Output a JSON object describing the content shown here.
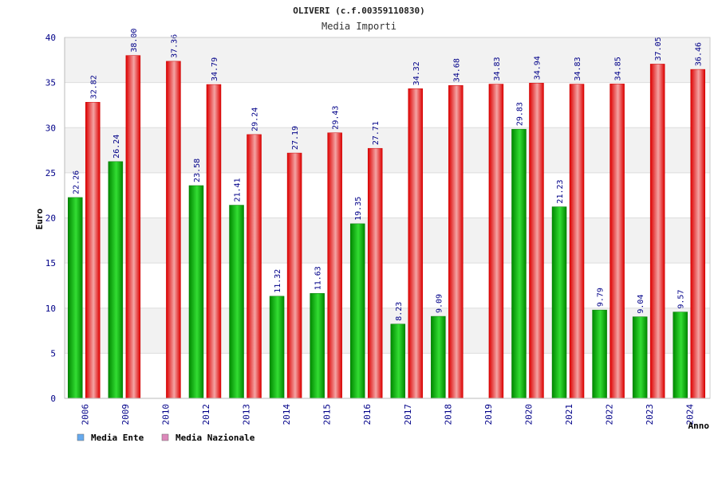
{
  "chart_data": {
    "type": "bar",
    "title": "OLIVERI (c.f.00359110830)",
    "subtitle": "Media Importi",
    "xlabel": "Anno",
    "ylabel": "Euro",
    "ylim": [
      0,
      40
    ],
    "yticks": [
      0,
      5,
      10,
      15,
      20,
      25,
      30,
      35,
      40
    ],
    "grid": true,
    "legend_position": "bottom-left",
    "categories": [
      "2006",
      "2009",
      "2010",
      "2012",
      "2013",
      "2014",
      "2015",
      "2016",
      "2017",
      "2018",
      "2019",
      "2020",
      "2021",
      "2022",
      "2023",
      "2024"
    ],
    "series": [
      {
        "name": "Media Ente",
        "color": "#00b400",
        "legend_color": "#66aaee",
        "values": [
          22.26,
          26.24,
          null,
          23.58,
          21.41,
          11.32,
          11.63,
          19.35,
          8.23,
          9.09,
          null,
          29.83,
          21.23,
          9.79,
          9.04,
          9.57
        ],
        "labels": [
          "22.26",
          "26.24",
          "",
          "23.58",
          "21.41",
          "11.32",
          "11.63",
          "19.35",
          "8.23",
          "9.09",
          "",
          "29.83",
          "21.23",
          "9.79",
          "9.04",
          "9.57"
        ]
      },
      {
        "name": "Media Nazionale",
        "color": "#ee1111",
        "legend_color": "#dd88bb",
        "values": [
          32.82,
          38.0,
          37.36,
          34.79,
          29.24,
          27.19,
          29.43,
          27.71,
          34.32,
          34.68,
          34.83,
          34.94,
          34.83,
          34.85,
          37.05,
          36.46
        ],
        "labels": [
          "32.82",
          "38.00",
          "37.36",
          "34.79",
          "29.24",
          "27.19",
          "29.43",
          "27.71",
          "34.32",
          "34.68",
          "34.83",
          "34.94",
          "34.83",
          "34.85",
          "37.05",
          "36.46"
        ]
      }
    ],
    "colors": {
      "axis_text": "#000088",
      "title_text": "#222222",
      "band": "#f2f2f2",
      "gridline": "#dddddd"
    }
  }
}
